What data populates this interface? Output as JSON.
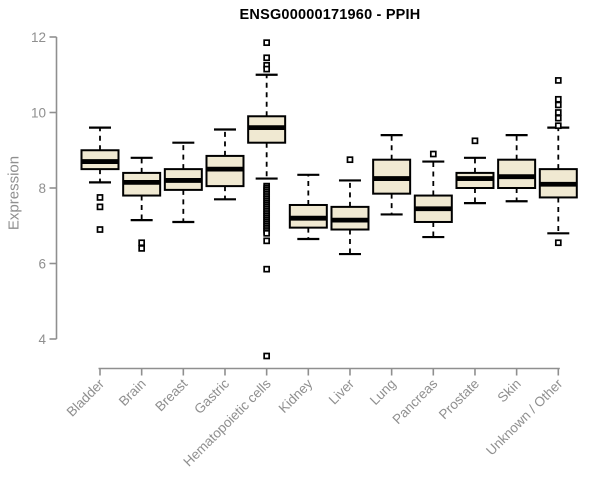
{
  "chart_data": {
    "type": "boxplot",
    "title": "ENSG00000171960 - PPIH",
    "xlabel": "",
    "ylabel": "Expression",
    "ylim": [
      3.2,
      12.2
    ],
    "yticks": [
      4,
      6,
      8,
      10,
      12
    ],
    "grid": false,
    "legend": "none",
    "categories": [
      "Bladder",
      "Brain",
      "Breast",
      "Gastric",
      "Hematopoietic cells",
      "Kidney",
      "Liver",
      "Lung",
      "Pancreas",
      "Prostate",
      "Skin",
      "Unknown / Other"
    ],
    "series": [
      {
        "category": "Bladder",
        "whisker_low": 8.15,
        "q1": 8.5,
        "median": 8.7,
        "q3": 9.0,
        "whisker_high": 9.6,
        "outliers": [
          7.75,
          7.5,
          6.9
        ]
      },
      {
        "category": "Brain",
        "whisker_low": 7.15,
        "q1": 7.8,
        "median": 8.15,
        "q3": 8.4,
        "whisker_high": 8.8,
        "outliers": [
          6.55,
          6.4
        ]
      },
      {
        "category": "Breast",
        "whisker_low": 7.1,
        "q1": 7.95,
        "median": 8.2,
        "q3": 8.5,
        "whisker_high": 9.2,
        "outliers": []
      },
      {
        "category": "Gastric",
        "whisker_low": 7.7,
        "q1": 8.05,
        "median": 8.5,
        "q3": 8.85,
        "whisker_high": 9.55,
        "outliers": []
      },
      {
        "category": "Hematopoietic cells",
        "whisker_low": 8.25,
        "q1": 9.2,
        "median": 9.6,
        "q3": 9.9,
        "whisker_high": 11.0,
        "outliers": [
          11.85,
          11.45,
          11.25,
          11.15,
          8.05,
          8.0,
          7.95,
          7.9,
          7.85,
          7.8,
          7.75,
          7.7,
          7.65,
          7.6,
          7.55,
          7.5,
          7.45,
          7.4,
          7.35,
          7.3,
          7.25,
          7.2,
          7.15,
          7.1,
          7.05,
          7.0,
          6.95,
          6.9,
          6.85,
          6.8,
          6.6,
          5.85,
          3.55
        ]
      },
      {
        "category": "Kidney",
        "whisker_low": 6.65,
        "q1": 6.95,
        "median": 7.2,
        "q3": 7.55,
        "whisker_high": 8.35,
        "outliers": []
      },
      {
        "category": "Liver",
        "whisker_low": 6.25,
        "q1": 6.9,
        "median": 7.15,
        "q3": 7.5,
        "whisker_high": 8.2,
        "outliers": [
          8.75
        ]
      },
      {
        "category": "Lung",
        "whisker_low": 7.3,
        "q1": 7.85,
        "median": 8.25,
        "q3": 8.75,
        "whisker_high": 9.4,
        "outliers": []
      },
      {
        "category": "Pancreas",
        "whisker_low": 6.7,
        "q1": 7.1,
        "median": 7.45,
        "q3": 7.8,
        "whisker_high": 8.7,
        "outliers": [
          8.9
        ]
      },
      {
        "category": "Prostate",
        "whisker_low": 7.6,
        "q1": 8.0,
        "median": 8.25,
        "q3": 8.4,
        "whisker_high": 8.8,
        "outliers": [
          9.25
        ]
      },
      {
        "category": "Skin",
        "whisker_low": 7.65,
        "q1": 8.0,
        "median": 8.3,
        "q3": 8.75,
        "whisker_high": 9.4,
        "outliers": []
      },
      {
        "category": "Unknown / Other",
        "whisker_low": 6.8,
        "q1": 7.75,
        "median": 8.1,
        "q3": 8.5,
        "whisker_high": 9.6,
        "outliers": [
          10.85,
          10.35,
          10.2,
          10.0,
          9.85,
          9.65,
          6.55
        ]
      }
    ],
    "styles": {
      "box_fill": "#F0E9D2",
      "box_stroke": "#000000",
      "median_color": "#000000",
      "axis_color": "#8f8f8f",
      "title_color": "#000000",
      "background": "#ffffff"
    }
  }
}
